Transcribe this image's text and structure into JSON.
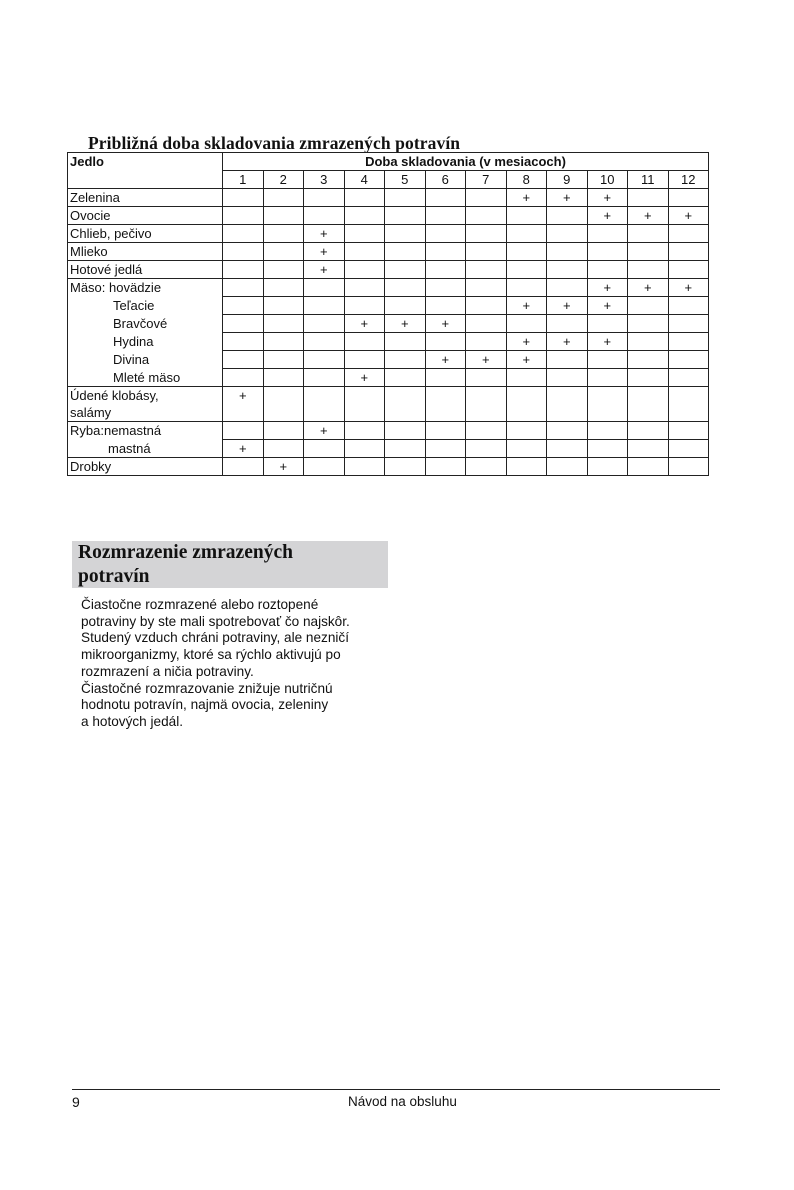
{
  "table_title": "Približná doba skladovania zmrazených potravín",
  "table": {
    "food_header": "Jedlo",
    "duration_header": "Doba skladovania (v mesiacoch)",
    "months": [
      "1",
      "2",
      "3",
      "4",
      "5",
      "6",
      "7",
      "8",
      "9",
      "10",
      "11",
      "12"
    ],
    "mark": "+",
    "groups": [
      {
        "rows": [
          {
            "label": "Zelenina",
            "indent": 0,
            "months": [
              8,
              9,
              10
            ]
          }
        ]
      },
      {
        "rows": [
          {
            "label": "Ovocie",
            "indent": 0,
            "months": [
              10,
              11,
              12
            ]
          }
        ]
      },
      {
        "rows": [
          {
            "label": "Chlieb, pečivo",
            "indent": 0,
            "months": [
              3
            ]
          }
        ]
      },
      {
        "rows": [
          {
            "label": "Mlieko",
            "indent": 0,
            "months": [
              3
            ]
          }
        ]
      },
      {
        "rows": [
          {
            "label": "Hotové jedlá",
            "indent": 0,
            "months": [
              3
            ]
          }
        ]
      },
      {
        "rows": [
          {
            "label": "Mäso: hovädzie",
            "indent": 0,
            "months": [
              10,
              11,
              12
            ]
          },
          {
            "label": "Teľacie",
            "indent": 2,
            "months": [
              8,
              9,
              10
            ]
          },
          {
            "label": "Bravčové",
            "indent": 2,
            "months": [
              4,
              5,
              6
            ]
          },
          {
            "label": "Hydina",
            "indent": 2,
            "months": [
              8,
              9,
              10
            ]
          },
          {
            "label": "Divina",
            "indent": 2,
            "months": [
              6,
              7,
              8
            ]
          },
          {
            "label": "Mleté mäso",
            "indent": 2,
            "months": [
              4
            ]
          }
        ]
      },
      {
        "rows": [
          {
            "label": "Údené klobásy,",
            "label2": "salámy",
            "indent": 0,
            "months": [
              1
            ]
          }
        ]
      },
      {
        "rows": [
          {
            "label": "Ryba:nemastná",
            "indent": 0,
            "months": [
              3
            ]
          },
          {
            "label": "mastná",
            "indent": 1,
            "months": [
              1
            ]
          }
        ]
      },
      {
        "rows": [
          {
            "label": "Drobky",
            "indent": 0,
            "months": [
              2
            ]
          }
        ]
      }
    ]
  },
  "section": {
    "heading_line1": "Rozmrazenie zmrazených",
    "heading_line2": "potravín",
    "heading_bg": "#d4d4d6",
    "lines": [
      "Čiastočne rozmrazené alebo roztopené",
      "potraviny by ste mali spotrebovať čo najskôr.",
      "Studený vzduch chráni potraviny, ale neznič­í",
      "mikroorganizmy, ktoré sa rýchlo aktivujú po",
      "rozmrazení a ničia potraviny.",
      "Čiastočné rozmrazovanie znižuje nutričnú",
      "hodnotu potravín, najmä ovocia, zeleniny",
      "a hotových jedál."
    ]
  },
  "footer": {
    "page_number": "9",
    "title": "Návod na obsluhu"
  }
}
